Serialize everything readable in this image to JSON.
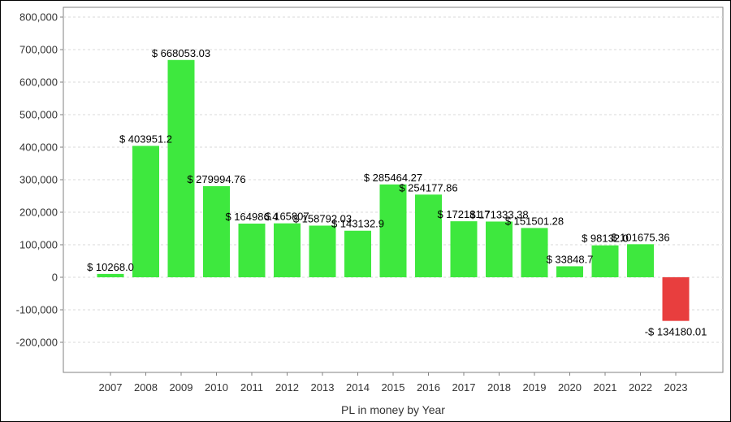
{
  "chart_data": {
    "type": "bar",
    "title": "",
    "xlabel": "PL in money by Year",
    "ylabel": "",
    "ylim": [
      -300000,
      800000
    ],
    "yticks": [
      800000,
      700000,
      600000,
      500000,
      400000,
      300000,
      200000,
      100000,
      0,
      -100000,
      -200000
    ],
    "ytick_labels": [
      "800,000",
      "700,000",
      "600,000",
      "500,000",
      "400,000",
      "300,000",
      "200,000",
      "100,000",
      "0",
      "-100,000",
      "-200,000"
    ],
    "grid": true,
    "categories": [
      "2007",
      "2008",
      "2009",
      "2010",
      "2011",
      "2012",
      "2013",
      "2014",
      "2015",
      "2016",
      "2017",
      "2018",
      "2019",
      "2020",
      "2021",
      "2022",
      "2023"
    ],
    "values": [
      10268.0,
      403951.2,
      668053.03,
      279994.76,
      164986.4,
      165807,
      158792.03,
      143132.9,
      285464.27,
      254177.86,
      172181.7,
      171333.38,
      151501.28,
      33848.7,
      98132.0,
      101675.36,
      -134180.01
    ],
    "data_labels": [
      "$ 10268.0",
      "$ 403951.2",
      "$ 668053.03",
      "$ 279994.76",
      "$ 164986.4",
      "$ 165807",
      "$ 158792.03",
      "$ 143132.9",
      "$ 285464.27",
      "$ 254177.86",
      "$ 172181.7",
      "$ 171333.38",
      "$ 151501.28",
      "$ 33848.7",
      "$ 98132.0",
      "$ 101675.36",
      "-$ 134180.01"
    ],
    "colors": {
      "positive": "#3ee83e",
      "negative": "#e83e3e"
    }
  }
}
